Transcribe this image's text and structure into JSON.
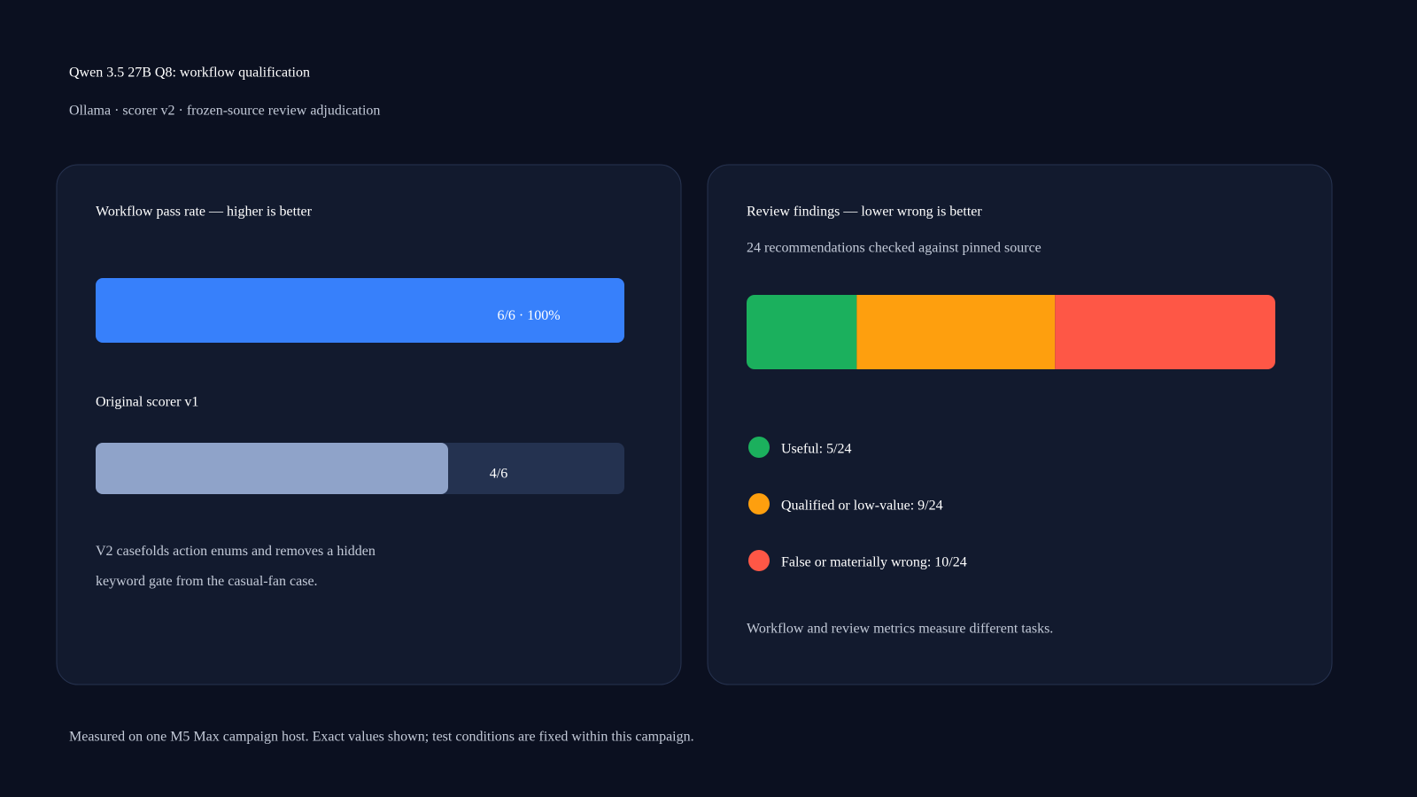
{
  "header": {
    "title": "Qwen 3.5 27B Q8: workflow qualification",
    "subtitle": "Ollama · scorer v2 · frozen-source review adjudication"
  },
  "chart_data": [
    {
      "type": "progress",
      "title": "Workflow pass rate — higher is better",
      "xlim": [
        0,
        6
      ],
      "bars": [
        {
          "value": 6,
          "value_label": "6/6 · 100%",
          "color": "#3780fb"
        },
        {
          "name": "Original scorer v1",
          "value": 4,
          "value_label": "4/6",
          "color": "#8fa3c9"
        }
      ],
      "note": "V2 casefolds action enums and removes a hidden keyword gate from the casual-fan case."
    },
    {
      "type": "stacked-bar",
      "title": "Review findings — lower wrong is better",
      "subtitle": "24 recommendations checked against pinned source",
      "xlim": [
        0,
        24
      ],
      "series": [
        {
          "name": "Useful: 5/24",
          "color": "#1bb05d",
          "values": [
            5
          ]
        },
        {
          "name": "Qualified or low-value: 9/24",
          "color": "#fe9f0e",
          "values": [
            9
          ]
        },
        {
          "name": "False or materially wrong: 10/24",
          "color": "#fe5746",
          "values": [
            10
          ]
        }
      ],
      "note": "Workflow and review metrics measure different tasks."
    }
  ],
  "footer": "Measured on one M5 Max campaign host. Exact values shown; test conditions are fixed within this campaign."
}
